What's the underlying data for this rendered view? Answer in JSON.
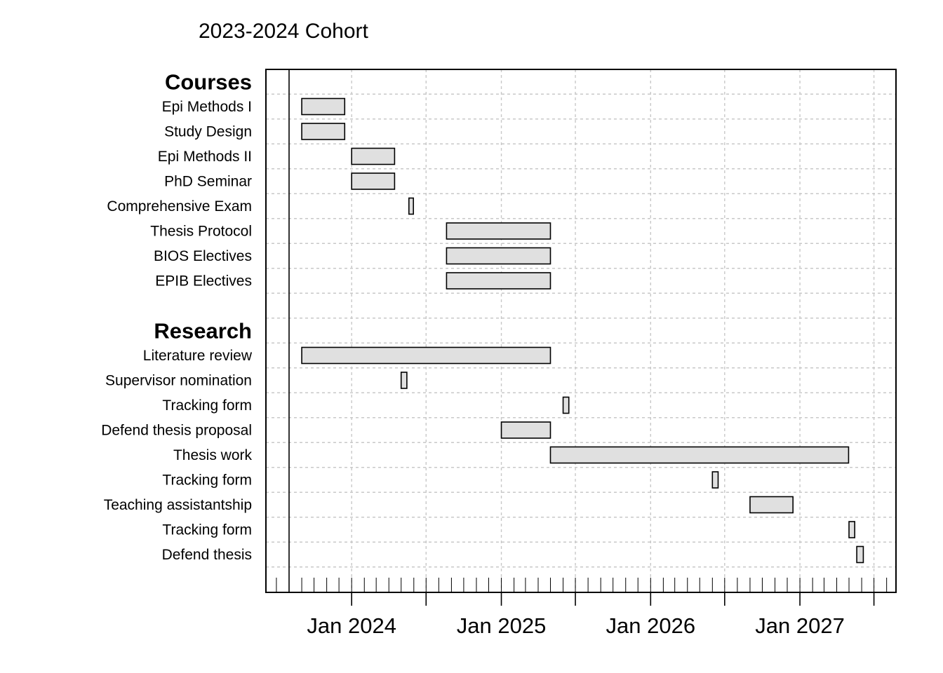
{
  "chart_data": {
    "type": "gantt",
    "title": "2023-2024 Cohort",
    "xlim": [
      "2023-08-01",
      "2027-06-30"
    ],
    "grid": true,
    "x_tick_labels": [
      {
        "date": "2024-01-01",
        "label": "Jan 2024"
      },
      {
        "date": "2025-01-01",
        "label": "Jan 2025"
      },
      {
        "date": "2026-01-01",
        "label": "Jan 2026"
      },
      {
        "date": "2027-01-01",
        "label": "Jan 2027"
      }
    ],
    "groups": [
      {
        "name": "Courses",
        "tasks": [
          {
            "label": "Epi Methods I",
            "start": "2023-09-01",
            "end": "2023-12-15"
          },
          {
            "label": "Study Design",
            "start": "2023-09-01",
            "end": "2023-12-15"
          },
          {
            "label": "Epi Methods II",
            "start": "2024-01-01",
            "end": "2024-04-15"
          },
          {
            "label": "PhD Seminar",
            "start": "2024-01-01",
            "end": "2024-04-15"
          },
          {
            "label": "Comprehensive Exam",
            "start": "2024-05-20",
            "end": "2024-05-31"
          },
          {
            "label": "Thesis Protocol",
            "start": "2024-08-20",
            "end": "2025-05-01"
          },
          {
            "label": "BIOS Electives",
            "start": "2024-08-20",
            "end": "2025-05-01"
          },
          {
            "label": "EPIB Electives",
            "start": "2024-08-20",
            "end": "2025-05-01"
          }
        ]
      },
      {
        "name": "Research",
        "tasks": [
          {
            "label": "Literature review",
            "start": "2023-09-01",
            "end": "2025-05-01"
          },
          {
            "label": "Supervisor nomination",
            "start": "2024-05-01",
            "end": "2024-05-15"
          },
          {
            "label": "Tracking form",
            "start": "2025-06-01",
            "end": "2025-06-15"
          },
          {
            "label": "Defend thesis proposal",
            "start": "2025-01-01",
            "end": "2025-05-01"
          },
          {
            "label": "Thesis work",
            "start": "2025-05-01",
            "end": "2027-04-30"
          },
          {
            "label": "Tracking form",
            "start": "2026-06-01",
            "end": "2026-06-15"
          },
          {
            "label": "Teaching assistantship",
            "start": "2026-09-01",
            "end": "2026-12-15"
          },
          {
            "label": "Tracking form",
            "start": "2027-05-01",
            "end": "2027-05-15"
          },
          {
            "label": "Defend thesis",
            "start": "2027-05-20",
            "end": "2027-06-05"
          }
        ]
      }
    ],
    "colors": {
      "bar_fill": "#e0e0e0",
      "bar_stroke": "#000000",
      "grid": "#c8c8c8"
    }
  }
}
